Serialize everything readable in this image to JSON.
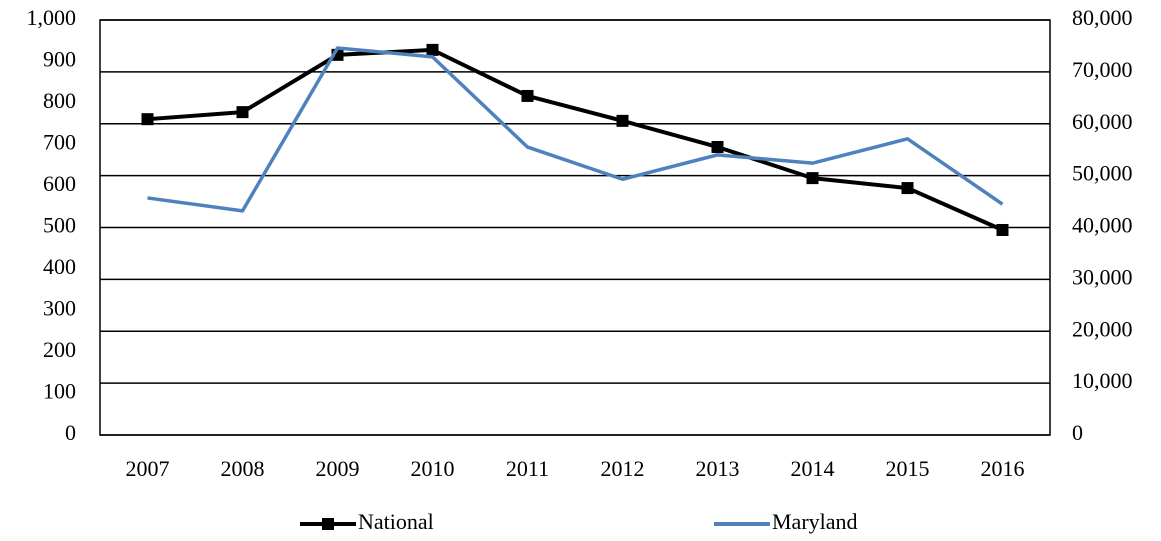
{
  "chart_data": {
    "type": "line",
    "categories": [
      "2007",
      "2008",
      "2009",
      "2010",
      "2011",
      "2012",
      "2013",
      "2014",
      "2015",
      "2016"
    ],
    "series": [
      {
        "name": "National",
        "color": "#000000",
        "marker": "square",
        "values": [
          761,
          778,
          916,
          928,
          817,
          757,
          694,
          619,
          595,
          494
        ]
      },
      {
        "name": "Maryland",
        "color": "#4f81bd",
        "axis": "y2",
        "values": [
          45700,
          43200,
          74600,
          72900,
          55500,
          49300,
          54000,
          52400,
          57100,
          44500
        ]
      }
    ],
    "ylim": [
      0,
      1000
    ],
    "yticks": [
      0,
      100,
      200,
      300,
      400,
      500,
      600,
      700,
      800,
      900,
      {
        "value": 1000,
        "label": "1,000"
      }
    ],
    "y2lim": [
      0,
      80000
    ],
    "y2ticks": [
      0,
      {
        "value": 10000,
        "label": "10,000"
      },
      {
        "value": 20000,
        "label": "20,000"
      },
      {
        "value": 30000,
        "label": "30,000"
      },
      {
        "value": 40000,
        "label": "40,000"
      },
      {
        "value": 50000,
        "label": "50,000"
      },
      {
        "value": 60000,
        "label": "60,000"
      },
      {
        "value": 70000,
        "label": "70,000"
      },
      {
        "value": 80000,
        "label": "80,000"
      }
    ],
    "grid": true,
    "legend": "bottom"
  }
}
